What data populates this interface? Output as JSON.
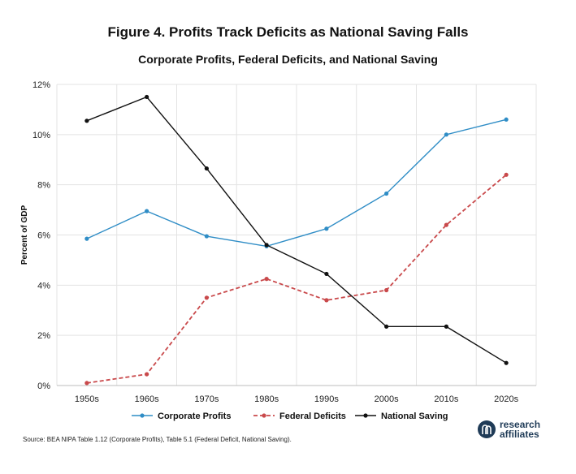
{
  "title": "Figure 4. Profits Track Deficits as National Saving Falls",
  "subtitle": "Corporate Profits, Federal Deficits, and National Saving",
  "source": "Source: BEA NIPA Table 1.12 (Corporate Profits), Table 5.1 (Federal Deficit, National Saving).",
  "logo": {
    "line1": "research",
    "line2": "affiliates",
    "icon": "research-affiliates-logo-icon"
  },
  "colors": {
    "corporate_profits": "#2f8dc6",
    "federal_deficits": "#c9494b",
    "national_saving": "#111111",
    "grid": "#e3e3e3"
  },
  "chart_data": {
    "type": "line",
    "title": "Corporate Profits, Federal Deficits, and National Saving",
    "xlabel": "",
    "ylabel": "Percent of GDP",
    "categories": [
      "1950s",
      "1960s",
      "1970s",
      "1980s",
      "1990s",
      "2000s",
      "2010s",
      "2020s"
    ],
    "ylim": [
      0,
      12
    ],
    "yticks": [
      0,
      2,
      4,
      6,
      8,
      10,
      12
    ],
    "ytick_labels": [
      "0%",
      "2%",
      "4%",
      "6%",
      "8%",
      "10%",
      "12%"
    ],
    "grid": true,
    "legend_position": "bottom",
    "series": [
      {
        "name": "Corporate Profits",
        "values": [
          5.85,
          6.95,
          5.95,
          5.55,
          6.25,
          7.65,
          10.0,
          10.6
        ],
        "style": "solid",
        "color": "#2f8dc6"
      },
      {
        "name": "Federal Deficits",
        "values": [
          0.1,
          0.45,
          3.5,
          4.25,
          3.4,
          3.8,
          6.4,
          8.4
        ],
        "style": "dashed",
        "color": "#c9494b"
      },
      {
        "name": "National Saving",
        "values": [
          10.55,
          11.5,
          8.65,
          5.6,
          4.45,
          2.35,
          2.35,
          0.9
        ],
        "style": "solid",
        "color": "#111111"
      }
    ]
  }
}
